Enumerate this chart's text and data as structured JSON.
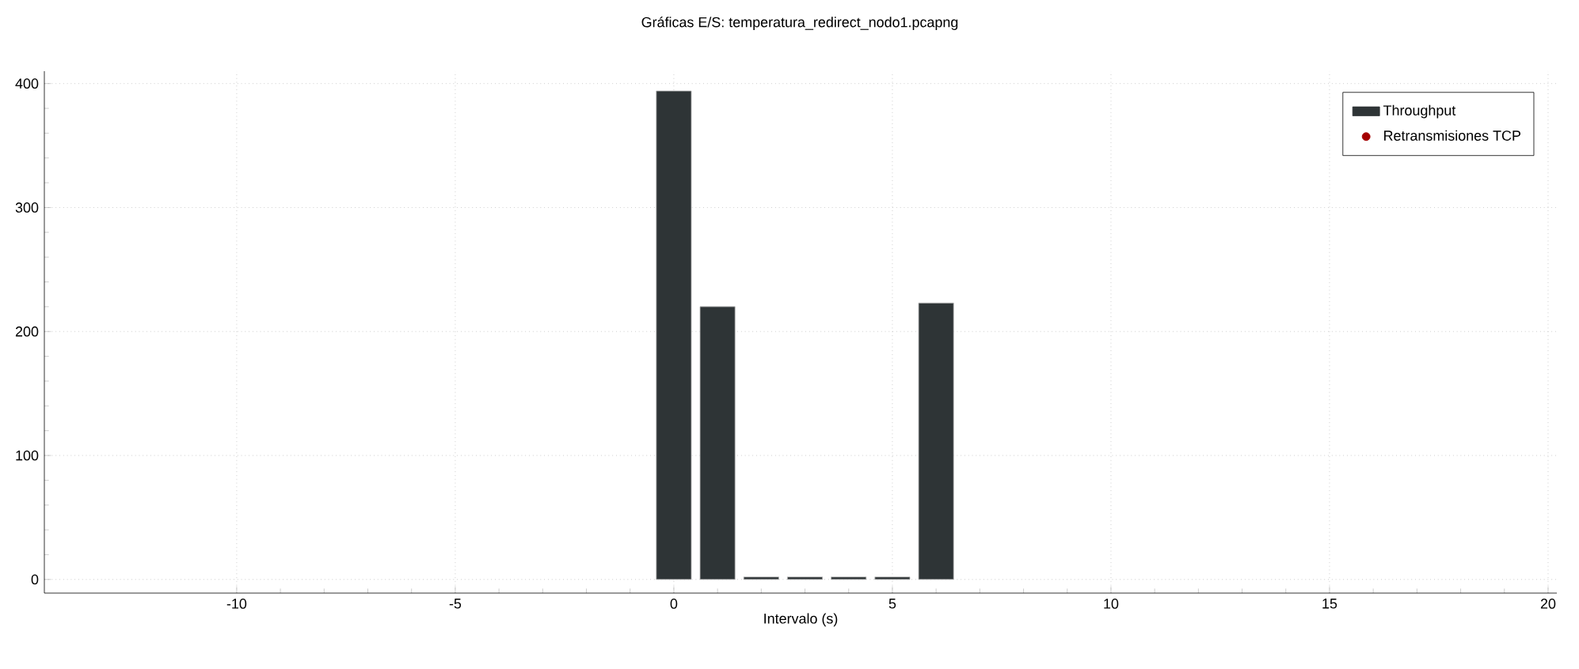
{
  "chart_data": {
    "type": "bar",
    "title": "Gráficas E/S: temperatura_redirect_nodo1.pcapng",
    "xlabel": "Intervalo (s)",
    "x": [
      0,
      1,
      2,
      3,
      4,
      5,
      6
    ],
    "series": [
      {
        "name": "Throughput",
        "color": "#2e3436",
        "values": [
          394,
          220,
          2,
          2,
          2,
          2,
          223
        ]
      },
      {
        "name": "Retransmisiones TCP",
        "type": "scatter",
        "color": "#a40000",
        "values": [
          null,
          null,
          null,
          null,
          null,
          null,
          null
        ]
      }
    ],
    "xlim": [
      -14.4,
      20.2
    ],
    "ylim": [
      -11,
      410
    ],
    "xticks": [
      -10,
      -5,
      0,
      5,
      10,
      15,
      20
    ],
    "yticks": [
      0,
      100,
      200,
      300,
      400
    ],
    "grid": true,
    "legend": "top right"
  }
}
